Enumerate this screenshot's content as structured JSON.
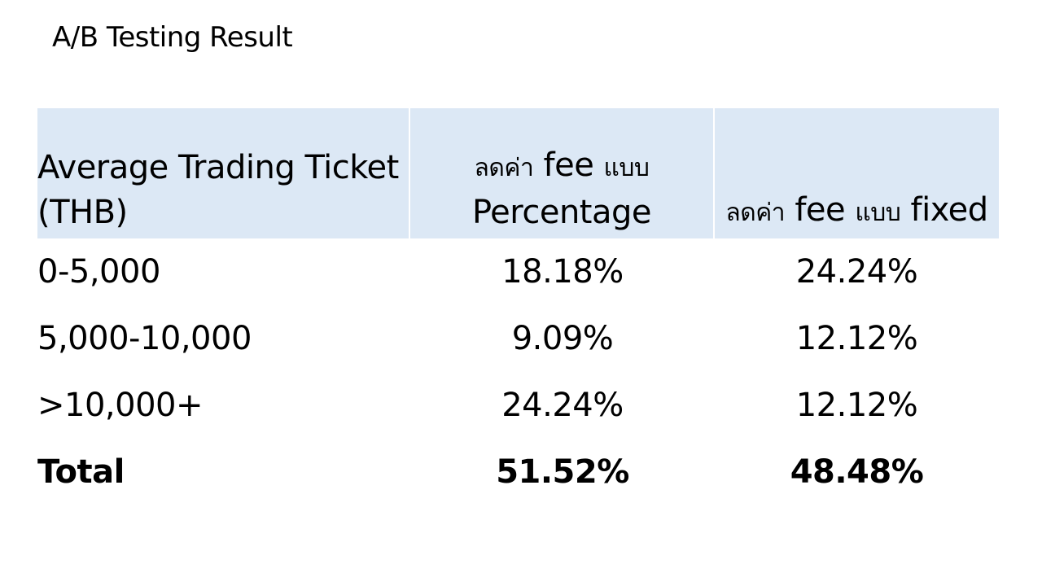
{
  "slide": {
    "title": "A/B Testing Result"
  },
  "table": {
    "headers": {
      "col1": "Average Trading Ticket\n(THB)",
      "col2_thai_a": "ลดค่า",
      "col2_fee": " fee ",
      "col2_thai_b": "แบบ",
      "col2_line2": "Percentage",
      "col3_thai_a": "ลดค่า",
      "col3_fee": " fee ",
      "col3_thai_b": "แบบ",
      "col3_end": " fixed"
    },
    "rows": [
      {
        "range": "0-5,000",
        "percentage": "18.18%",
        "fixed": "24.24%"
      },
      {
        "range": "5,000-10,000",
        "percentage": "9.09%",
        "fixed": "12.12%"
      },
      {
        "range": ">10,000+",
        "percentage": "24.24%",
        "fixed": "12.12%"
      }
    ],
    "total": {
      "label": "Total",
      "percentage": "51.52%",
      "fixed": "48.48%"
    },
    "header_bg": "#dce8f5"
  }
}
